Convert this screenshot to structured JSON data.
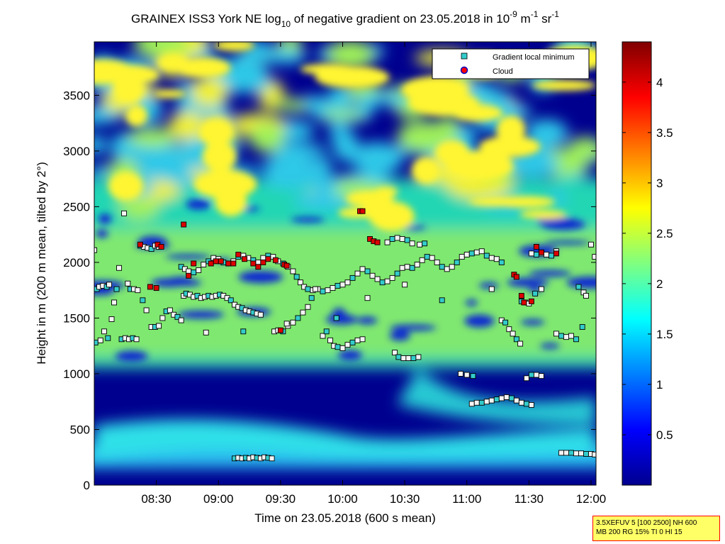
{
  "chart_data": {
    "type": "heatmap",
    "title_main": "GRAINEX ISS3 York NE log",
    "title_sub": "10",
    "title_mid": " of negative gradient on 23.05.2018 in 10",
    "title_exp1": "-9",
    "title_unit1": " m",
    "title_exp2": "-1",
    "title_unit2": " sr",
    "title_exp3": "-1",
    "xlabel": "Time on 23.05.2018 (600 s mean)",
    "ylabel": "Height in m (200 m mean, tilted by 2°)",
    "x_tick_labels": [
      "08:30",
      "09:00",
      "09:30",
      "10:00",
      "10:30",
      "11:00",
      "11:30",
      "12:00"
    ],
    "x_ticks_hours": [
      8.5,
      9.0,
      9.5,
      10.0,
      10.5,
      11.0,
      11.5,
      12.0
    ],
    "xlim_hours": [
      8.0,
      12.04
    ],
    "y_tick_labels": [
      "0",
      "500",
      "1000",
      "1500",
      "2000",
      "2500",
      "3000",
      "3500"
    ],
    "y_ticks": [
      0,
      500,
      1000,
      1500,
      2000,
      2500,
      3000,
      3500
    ],
    "ylim": [
      0,
      3980
    ],
    "colorbar_tick_labels": [
      "0.5",
      "1",
      "1.5",
      "2",
      "2.5",
      "3",
      "3.5",
      "4"
    ],
    "colorbar_ticks": [
      0.5,
      1,
      1.5,
      2,
      2.5,
      3,
      3.5,
      4
    ],
    "colorbar_range": [
      0,
      4.4
    ],
    "colormap": "jet",
    "legend_position": "top-right",
    "legend": [
      {
        "label": "Gradient local minimum",
        "marker": "square",
        "color": "#33cccc"
      },
      {
        "label": "Cloud",
        "marker": "circle",
        "color": "#ff0000",
        "edge": "#0000cc"
      }
    ],
    "series": [
      {
        "name": "Gradient local minimum",
        "marker": "square",
        "points": [
          [
            8.02,
            1760
          ],
          [
            8.04,
            1780
          ],
          [
            8.07,
            1790
          ],
          [
            8.1,
            1780
          ],
          [
            8.12,
            1800
          ],
          [
            8.0,
            2110
          ],
          [
            8.01,
            1280
          ],
          [
            8.05,
            1300
          ],
          [
            8.08,
            1380
          ],
          [
            8.11,
            1320
          ],
          [
            8.14,
            1490
          ],
          [
            8.16,
            1640
          ],
          [
            8.18,
            1760
          ],
          [
            8.2,
            1950
          ],
          [
            8.24,
            2440
          ],
          [
            8.22,
            1310
          ],
          [
            8.25,
            1320
          ],
          [
            8.28,
            1310
          ],
          [
            8.31,
            1320
          ],
          [
            8.34,
            1310
          ],
          [
            8.27,
            1810
          ],
          [
            8.29,
            1760
          ],
          [
            8.32,
            1760
          ],
          [
            8.35,
            1750
          ],
          [
            8.37,
            2150
          ],
          [
            8.4,
            2140
          ],
          [
            8.43,
            2130
          ],
          [
            8.46,
            2120
          ],
          [
            8.49,
            2150
          ],
          [
            8.52,
            2140
          ],
          [
            8.39,
            1660
          ],
          [
            8.42,
            1570
          ],
          [
            8.46,
            1420
          ],
          [
            8.49,
            1420
          ],
          [
            8.52,
            1430
          ],
          [
            8.55,
            1500
          ],
          [
            8.58,
            1560
          ],
          [
            8.61,
            1570
          ],
          [
            8.64,
            1530
          ],
          [
            8.67,
            1510
          ],
          [
            8.7,
            1480
          ],
          [
            8.72,
            1700
          ],
          [
            8.74,
            1720
          ],
          [
            8.77,
            1710
          ],
          [
            8.8,
            1690
          ],
          [
            8.83,
            1700
          ],
          [
            8.86,
            1680
          ],
          [
            8.89,
            1690
          ],
          [
            8.92,
            1700
          ],
          [
            8.95,
            1690
          ],
          [
            8.98,
            1700
          ],
          [
            9.01,
            1710
          ],
          [
            9.04,
            1700
          ],
          [
            9.07,
            1680
          ],
          [
            9.1,
            1660
          ],
          [
            9.13,
            1620
          ],
          [
            9.16,
            1600
          ],
          [
            9.19,
            1590
          ],
          [
            9.22,
            1570
          ],
          [
            9.25,
            1560
          ],
          [
            9.28,
            1550
          ],
          [
            9.31,
            1540
          ],
          [
            9.34,
            1530
          ],
          [
            8.7,
            1960
          ],
          [
            8.73,
            1940
          ],
          [
            8.76,
            1920
          ],
          [
            8.8,
            1910
          ],
          [
            8.84,
            1930
          ],
          [
            8.88,
            1980
          ],
          [
            8.92,
            2010
          ],
          [
            8.96,
            2040
          ],
          [
            9.0,
            2030
          ],
          [
            9.04,
            2000
          ],
          [
            9.08,
            1990
          ],
          [
            9.12,
            2010
          ],
          [
            9.16,
            2050
          ],
          [
            9.2,
            2060
          ],
          [
            9.24,
            2040
          ],
          [
            9.28,
            2020
          ],
          [
            9.32,
            2000
          ],
          [
            9.36,
            2040
          ],
          [
            9.4,
            2060
          ],
          [
            9.44,
            2050
          ],
          [
            9.48,
            2010
          ],
          [
            9.52,
            1990
          ],
          [
            9.56,
            1960
          ],
          [
            9.6,
            1920
          ],
          [
            9.63,
            1870
          ],
          [
            9.66,
            1820
          ],
          [
            9.69,
            1780
          ],
          [
            9.72,
            1760
          ],
          [
            9.76,
            1750
          ],
          [
            9.8,
            1760
          ],
          [
            9.84,
            1740
          ],
          [
            9.88,
            1750
          ],
          [
            9.92,
            1770
          ],
          [
            9.96,
            1790
          ],
          [
            10.0,
            1800
          ],
          [
            10.04,
            1820
          ],
          [
            10.08,
            1860
          ],
          [
            10.12,
            1900
          ],
          [
            10.16,
            1940
          ],
          [
            10.2,
            1920
          ],
          [
            10.24,
            1880
          ],
          [
            10.28,
            1850
          ],
          [
            10.32,
            1820
          ],
          [
            10.36,
            1830
          ],
          [
            10.4,
            1860
          ],
          [
            10.44,
            1900
          ],
          [
            10.48,
            1950
          ],
          [
            10.52,
            1960
          ],
          [
            10.56,
            1950
          ],
          [
            10.6,
            1980
          ],
          [
            10.64,
            2020
          ],
          [
            10.68,
            2050
          ],
          [
            10.72,
            2040
          ],
          [
            10.76,
            2000
          ],
          [
            10.8,
            1960
          ],
          [
            10.84,
            1940
          ],
          [
            10.88,
            1960
          ],
          [
            10.92,
            2000
          ],
          [
            10.96,
            2050
          ],
          [
            11.0,
            2070
          ],
          [
            11.04,
            2080
          ],
          [
            11.08,
            2090
          ],
          [
            11.12,
            2100
          ],
          [
            11.16,
            2060
          ],
          [
            11.2,
            2040
          ],
          [
            11.24,
            2030
          ],
          [
            11.28,
            2000
          ],
          [
            9.45,
            1380
          ],
          [
            9.48,
            1390
          ],
          [
            9.52,
            1380
          ],
          [
            9.56,
            1430
          ],
          [
            9.6,
            1460
          ],
          [
            9.64,
            1500
          ],
          [
            9.68,
            1550
          ],
          [
            9.72,
            1600
          ],
          [
            9.75,
            1680
          ],
          [
            9.78,
            1760
          ],
          [
            9.84,
            1340
          ],
          [
            9.87,
            1380
          ],
          [
            9.9,
            1300
          ],
          [
            9.93,
            1250
          ],
          [
            9.96,
            1240
          ],
          [
            10.0,
            1230
          ],
          [
            10.04,
            1260
          ],
          [
            10.08,
            1280
          ],
          [
            10.12,
            1300
          ],
          [
            10.16,
            1310
          ],
          [
            9.13,
            240
          ],
          [
            9.16,
            245
          ],
          [
            9.19,
            240
          ],
          [
            9.22,
            245
          ],
          [
            9.25,
            240
          ],
          [
            9.28,
            250
          ],
          [
            9.31,
            245
          ],
          [
            9.34,
            240
          ],
          [
            9.37,
            250
          ],
          [
            9.4,
            245
          ],
          [
            9.43,
            240
          ],
          [
            10.42,
            1190
          ],
          [
            10.45,
            1150
          ],
          [
            10.49,
            1140
          ],
          [
            10.53,
            1140
          ],
          [
            10.57,
            1140
          ],
          [
            10.61,
            1150
          ],
          [
            10.36,
            2180
          ],
          [
            10.4,
            2210
          ],
          [
            10.44,
            2220
          ],
          [
            10.48,
            2210
          ],
          [
            10.52,
            2200
          ],
          [
            10.56,
            2170
          ],
          [
            10.62,
            2160
          ],
          [
            10.66,
            2170
          ],
          [
            10.95,
            1000
          ],
          [
            11.0,
            990
          ],
          [
            11.05,
            980
          ],
          [
            11.04,
            730
          ],
          [
            11.08,
            740
          ],
          [
            11.12,
            740
          ],
          [
            11.16,
            750
          ],
          [
            11.2,
            760
          ],
          [
            11.24,
            770
          ],
          [
            11.28,
            780
          ],
          [
            11.32,
            790
          ],
          [
            11.36,
            780
          ],
          [
            11.4,
            760
          ],
          [
            11.44,
            740
          ],
          [
            11.48,
            730
          ],
          [
            11.52,
            720
          ],
          [
            11.28,
            1480
          ],
          [
            11.31,
            1460
          ],
          [
            11.34,
            1400
          ],
          [
            11.37,
            1360
          ],
          [
            11.4,
            1310
          ],
          [
            11.43,
            1270
          ],
          [
            11.48,
            960
          ],
          [
            11.52,
            990
          ],
          [
            11.56,
            990
          ],
          [
            11.6,
            980
          ],
          [
            11.44,
            1650
          ],
          [
            11.47,
            1640
          ],
          [
            11.5,
            1630
          ],
          [
            11.55,
            1720
          ],
          [
            11.6,
            1760
          ],
          [
            11.52,
            2080
          ],
          [
            11.56,
            2070
          ],
          [
            11.6,
            2080
          ],
          [
            11.64,
            2070
          ],
          [
            11.68,
            2060
          ],
          [
            11.72,
            2100
          ],
          [
            11.72,
            1360
          ],
          [
            11.76,
            1340
          ],
          [
            11.8,
            1330
          ],
          [
            11.84,
            1340
          ],
          [
            11.88,
            1310
          ],
          [
            11.76,
            290
          ],
          [
            11.8,
            290
          ],
          [
            11.84,
            290
          ],
          [
            11.88,
            285
          ],
          [
            11.92,
            285
          ],
          [
            11.96,
            280
          ],
          [
            12.0,
            280
          ],
          [
            12.03,
            275
          ],
          [
            11.9,
            1780
          ],
          [
            11.94,
            1730
          ],
          [
            11.96,
            1700
          ],
          [
            11.93,
            1420
          ],
          [
            12.0,
            2160
          ],
          [
            12.03,
            2050
          ],
          [
            9.95,
            1500
          ],
          [
            10.2,
            1680
          ],
          [
            10.5,
            1800
          ],
          [
            10.8,
            1660
          ],
          [
            11.2,
            1760
          ],
          [
            8.9,
            1370
          ],
          [
            9.2,
            1380
          ],
          [
            9.55,
            1450
          ]
        ]
      },
      {
        "name": "Cloud",
        "marker": "circle",
        "points": [
          [
            8.37,
            2160
          ],
          [
            8.51,
            2160
          ],
          [
            8.54,
            2140
          ],
          [
            8.76,
            1880
          ],
          [
            8.8,
            1990
          ],
          [
            8.72,
            2340
          ],
          [
            8.94,
            1990
          ],
          [
            8.98,
            2010
          ],
          [
            9.02,
            2010
          ],
          [
            9.08,
            1990
          ],
          [
            9.12,
            1990
          ],
          [
            9.16,
            2070
          ],
          [
            9.21,
            2030
          ],
          [
            9.28,
            1990
          ],
          [
            9.32,
            1960
          ],
          [
            9.36,
            2000
          ],
          [
            9.4,
            2030
          ],
          [
            9.46,
            2020
          ],
          [
            9.53,
            1980
          ],
          [
            9.55,
            1970
          ],
          [
            10.14,
            2460
          ],
          [
            10.16,
            2460
          ],
          [
            10.22,
            2210
          ],
          [
            10.25,
            2190
          ],
          [
            10.28,
            2180
          ],
          [
            11.38,
            1890
          ],
          [
            11.4,
            1870
          ],
          [
            11.44,
            1700
          ],
          [
            11.46,
            1640
          ],
          [
            11.52,
            1650
          ],
          [
            11.56,
            2140
          ],
          [
            11.6,
            2090
          ],
          [
            11.72,
            2080
          ],
          [
            9.5,
            1390
          ],
          [
            8.45,
            1780
          ],
          [
            8.5,
            1770
          ]
        ]
      }
    ],
    "info_lines": [
      "3.5XEFUV 5 [100 2500] NH 600",
      "MB 200 RG 15% TI 0 HI 15"
    ]
  }
}
